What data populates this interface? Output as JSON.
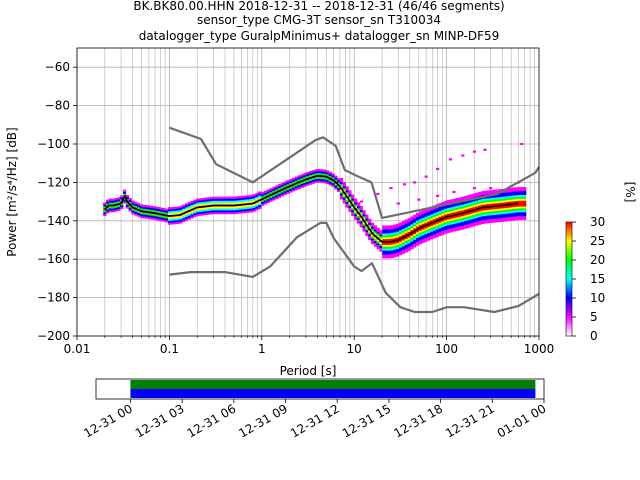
{
  "title_lines": [
    "BK.BK80.00.HHN   2018-12-31 -- 2018-12-31  (46/46 segments)",
    "sensor_type CMG-3T sensor_sn T310034",
    "datalogger_type GuralpMinimus+ datalogger_sn MINP-DF59"
  ],
  "colorbar": {
    "label": "[%]",
    "ticks": [
      "0",
      "5",
      "10",
      "15",
      "20",
      "25",
      "30"
    ],
    "range": [
      0,
      30
    ],
    "stops": [
      "#ffffff",
      "#ff00ff",
      "#0000ff",
      "#00ffff",
      "#00ff00",
      "#ffff00",
      "#ff0000"
    ]
  },
  "colors": {
    "model_lines": "#6e6e6e",
    "mean": "#000000",
    "timeline_a": "#008000",
    "timeline_b": "#0000ff"
  },
  "chart_data": [
    {
      "type": "line",
      "title": "",
      "xlabel": "Period [s]",
      "ylabel": "Power [m²/s⁴/Hz] [dB]",
      "xscale": "log",
      "xlim": [
        0.01,
        1000
      ],
      "ylim": [
        -200,
        -50
      ],
      "xticks": [
        {
          "v": 0.01,
          "label": "0.01"
        },
        {
          "v": 0.1,
          "label": "0.1"
        },
        {
          "v": 1,
          "label": "1"
        },
        {
          "v": 10,
          "label": "10"
        },
        {
          "v": 100,
          "label": "100"
        },
        {
          "v": 1000,
          "label": "1000"
        }
      ],
      "yticks": [
        {
          "v": -60,
          "label": "−60"
        },
        {
          "v": -80,
          "label": "−80"
        },
        {
          "v": -100,
          "label": "−100"
        },
        {
          "v": -120,
          "label": "−120"
        },
        {
          "v": -140,
          "label": "−140"
        },
        {
          "v": -160,
          "label": "−160"
        },
        {
          "v": -180,
          "label": "−180"
        },
        {
          "v": -200,
          "label": "−200"
        }
      ],
      "grid": true,
      "series": [
        {
          "role": "high-noise-model",
          "x": [
            0.1,
            0.22,
            0.32,
            0.8,
            3.8,
            4.6,
            6.3,
            7.9,
            10.0,
            15.4,
            20.0,
            354.8,
            912.0,
            1000
          ],
          "y": [
            -91.5,
            -97.4,
            -110.5,
            -120.0,
            -98.0,
            -96.5,
            -101.0,
            -113.5,
            -116.0,
            -120.0,
            -138.5,
            -126.0,
            -115.0,
            -112.0
          ]
        },
        {
          "role": "low-noise-model",
          "x": [
            0.1,
            0.17,
            0.4,
            0.8,
            1.24,
            2.4,
            4.3,
            5.0,
            6.0,
            10.0,
            12.0,
            15.6,
            21.9,
            31.6,
            45.0,
            70.0,
            101.0,
            154.0,
            328.0,
            600.0,
            1000
          ],
          "y": [
            -168.0,
            -166.7,
            -166.7,
            -169.2,
            -163.7,
            -148.6,
            -141.1,
            -141.1,
            -149.0,
            -163.8,
            -166.2,
            -162.1,
            -177.5,
            -185.0,
            -187.5,
            -187.5,
            -185.0,
            -185.0,
            -187.5,
            -184.4,
            -178.0
          ]
        },
        {
          "role": "mean",
          "x": [
            0.02,
            0.022,
            0.025,
            0.03,
            0.033,
            0.035,
            0.04,
            0.05,
            0.07,
            0.1,
            0.13,
            0.2,
            0.3,
            0.5,
            0.8,
            1.2,
            1.8,
            2.5,
            3.2,
            4.0,
            5.0,
            6.0,
            7.0,
            8.5,
            10.0,
            12.0,
            14.0,
            16.0,
            18.0,
            20.0,
            25.0,
            30.0,
            40.0,
            50.0,
            70.0,
            100.0,
            150.0,
            250.0,
            400.0,
            600.0
          ],
          "y": [
            -134,
            -132,
            -132,
            -131,
            -127,
            -130,
            -133,
            -135,
            -136,
            -137.5,
            -137,
            -133,
            -132,
            -132,
            -131,
            -127,
            -123,
            -120,
            -118,
            -116.5,
            -117,
            -119,
            -122,
            -128,
            -133,
            -138,
            -143,
            -147,
            -149,
            -151,
            -151,
            -150,
            -147,
            -144,
            -141,
            -138,
            -136,
            -133,
            -132,
            -131
          ]
        }
      ]
    },
    {
      "type": "timeline",
      "xlabel": "",
      "xlim": [
        "2018-12-30 22:00",
        "2019-01-01 00:00"
      ],
      "xticks": [
        "12-31 00",
        "12-31 03",
        "12-31 06",
        "12-31 09",
        "12-31 12",
        "12-31 15",
        "12-31 18",
        "12-31 21",
        "01-01 00"
      ],
      "bars": [
        {
          "row": 0,
          "start": "2018-12-31 00:00",
          "end": "2018-12-31 23:30",
          "color": "#008000"
        },
        {
          "row": 1,
          "start": "2018-12-31 00:00",
          "end": "2018-12-31 23:30",
          "color": "#0000ff"
        }
      ]
    }
  ]
}
